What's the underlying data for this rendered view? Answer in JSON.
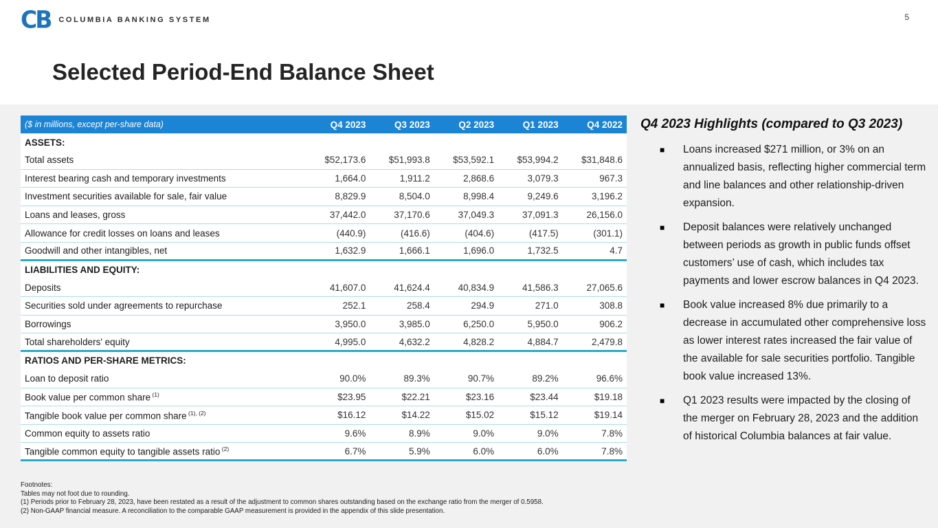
{
  "page": {
    "number": "5",
    "title": "Selected Period-End Balance Sheet"
  },
  "logo": {
    "mark": "CB",
    "text": "COLUMBIA BANKING SYSTEM"
  },
  "colors": {
    "header_bar_blue": "#1B84D4",
    "section_divider_teal": "#29A9C8",
    "row_divider_cyan": "#A9DCE9",
    "logo_blue": "#1C75BC",
    "slide_body_gray": "#F1F1F2"
  },
  "table": {
    "caption": "($ in millions, except per-share data)",
    "columns": [
      "Q4 2023",
      "Q3 2023",
      "Q2 2023",
      "Q1 2023",
      "Q4 2022"
    ],
    "sections": [
      {
        "title": "ASSETS:",
        "rows": [
          {
            "label": "Total assets",
            "sup": "",
            "values": [
              "$52,173.6",
              "$51,993.8",
              "$53,592.1",
              "$53,994.2",
              "$31,848.6"
            ]
          },
          {
            "label": "Interest bearing cash and temporary investments",
            "sup": "",
            "values": [
              "1,664.0",
              "1,911.2",
              "2,868.6",
              "3,079.3",
              "967.3"
            ]
          },
          {
            "label": "Investment securities available for sale, fair value",
            "sup": "",
            "values": [
              "8,829.9",
              "8,504.0",
              "8,998.4",
              "9,249.6",
              "3,196.2"
            ]
          },
          {
            "label": "Loans and leases, gross",
            "sup": "",
            "values": [
              "37,442.0",
              "37,170.6",
              "37,049.3",
              "37,091.3",
              "26,156.0"
            ]
          },
          {
            "label": "Allowance for credit losses on loans and leases",
            "sup": "",
            "values": [
              "(440.9)",
              "(416.6)",
              "(404.6)",
              "(417.5)",
              "(301.1)"
            ]
          },
          {
            "label": "Goodwill and other intangibles, net",
            "sup": "",
            "values": [
              "1,632.9",
              "1,666.1",
              "1,696.0",
              "1,732.5",
              "4.7"
            ]
          }
        ]
      },
      {
        "title": "LIABILITIES AND EQUITY:",
        "rows": [
          {
            "label": "Deposits",
            "sup": "",
            "values": [
              "41,607.0",
              "41,624.4",
              "40,834.9",
              "41,586.3",
              "27,065.6"
            ]
          },
          {
            "label": "Securities sold under agreements to repurchase",
            "sup": "",
            "values": [
              "252.1",
              "258.4",
              "294.9",
              "271.0",
              "308.8"
            ]
          },
          {
            "label": "Borrowings",
            "sup": "",
            "values": [
              "3,950.0",
              "3,985.0",
              "6,250.0",
              "5,950.0",
              "906.2"
            ]
          },
          {
            "label": "Total shareholders' equity",
            "sup": "",
            "values": [
              "4,995.0",
              "4,632.2",
              "4,828.2",
              "4,884.7",
              "2,479.8"
            ]
          }
        ]
      },
      {
        "title": "RATIOS AND PER-SHARE METRICS:",
        "rows": [
          {
            "label": "Loan to deposit ratio",
            "sup": "",
            "values": [
              "90.0%",
              "89.3%",
              "90.7%",
              "89.2%",
              "96.6%"
            ]
          },
          {
            "label": "Book value per common share",
            "sup": "(1)",
            "values": [
              "$23.95",
              "$22.21",
              "$23.16",
              "$23.44",
              "$19.18"
            ]
          },
          {
            "label": "Tangible book value per common share",
            "sup": "(1), (2)",
            "values": [
              "$16.12",
              "$14.22",
              "$15.02",
              "$15.12",
              "$19.14"
            ]
          },
          {
            "label": "Common equity to assets ratio",
            "sup": "",
            "values": [
              "9.6%",
              "8.9%",
              "9.0%",
              "9.0%",
              "7.8%"
            ]
          },
          {
            "label": "Tangible common equity to tangible assets ratio",
            "sup": "(2)",
            "values": [
              "6.7%",
              "5.9%",
              "6.0%",
              "6.0%",
              "7.8%"
            ]
          }
        ]
      }
    ]
  },
  "footnotes": {
    "title": "Footnotes:",
    "lines": [
      "Tables may not foot due to rounding.",
      "(1) Periods prior to February 28, 2023, have been restated as a result of the adjustment to common shares outstanding based on the exchange ratio from the merger of 0.5958.",
      "(2) Non-GAAP financial measure.  A reconciliation to the comparable GAAP measurement is provided in the appendix of this slide presentation."
    ]
  },
  "highlights": {
    "title": "Q4 2023 Highlights (compared to Q3 2023)",
    "bullets": [
      "Loans increased $271 million, or 3% on an annualized basis, reflecting higher commercial term and line balances and other relationship-driven expansion.",
      "Deposit balances were relatively unchanged between periods as growth in public funds offset customers’ use of cash, which includes tax payments and lower escrow balances in Q4 2023.",
      "Book value increased 8% due primarily to a decrease in accumulated other comprehensive loss as lower interest rates increased the fair value of the available for sale securities portfolio. Tangible book value increased 13%.",
      "Q1 2023 results were impacted by the closing of the merger on February 28, 2023 and the addition of historical Columbia balances at fair value."
    ]
  }
}
